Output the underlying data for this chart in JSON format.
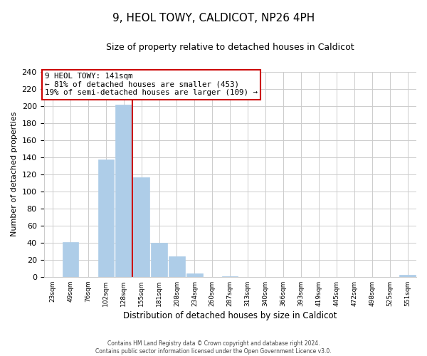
{
  "title": "9, HEOL TOWY, CALDICOT, NP26 4PH",
  "subtitle": "Size of property relative to detached houses in Caldicot",
  "xlabel": "Distribution of detached houses by size in Caldicot",
  "ylabel": "Number of detached properties",
  "bar_labels": [
    "23sqm",
    "49sqm",
    "76sqm",
    "102sqm",
    "128sqm",
    "155sqm",
    "181sqm",
    "208sqm",
    "234sqm",
    "260sqm",
    "287sqm",
    "313sqm",
    "340sqm",
    "366sqm",
    "393sqm",
    "419sqm",
    "445sqm",
    "472sqm",
    "498sqm",
    "525sqm",
    "551sqm"
  ],
  "bar_values": [
    0,
    41,
    0,
    137,
    201,
    116,
    40,
    24,
    4,
    0,
    1,
    0,
    0,
    0,
    0,
    0,
    0,
    0,
    0,
    0,
    2
  ],
  "bar_color": "#aecde8",
  "bar_edge_color": "#aecde8",
  "vline_x": 4.5,
  "vline_color": "#cc0000",
  "annotation_title": "9 HEOL TOWY: 141sqm",
  "annotation_line1": "← 81% of detached houses are smaller (453)",
  "annotation_line2": "19% of semi-detached houses are larger (109) →",
  "annotation_box_color": "#ffffff",
  "annotation_box_edge": "#cc0000",
  "ylim": [
    0,
    240
  ],
  "yticks": [
    0,
    20,
    40,
    60,
    80,
    100,
    120,
    140,
    160,
    180,
    200,
    220,
    240
  ],
  "footer1": "Contains HM Land Registry data © Crown copyright and database right 2024.",
  "footer2": "Contains public sector information licensed under the Open Government Licence v3.0.",
  "bg_color": "#ffffff",
  "grid_color": "#cccccc"
}
